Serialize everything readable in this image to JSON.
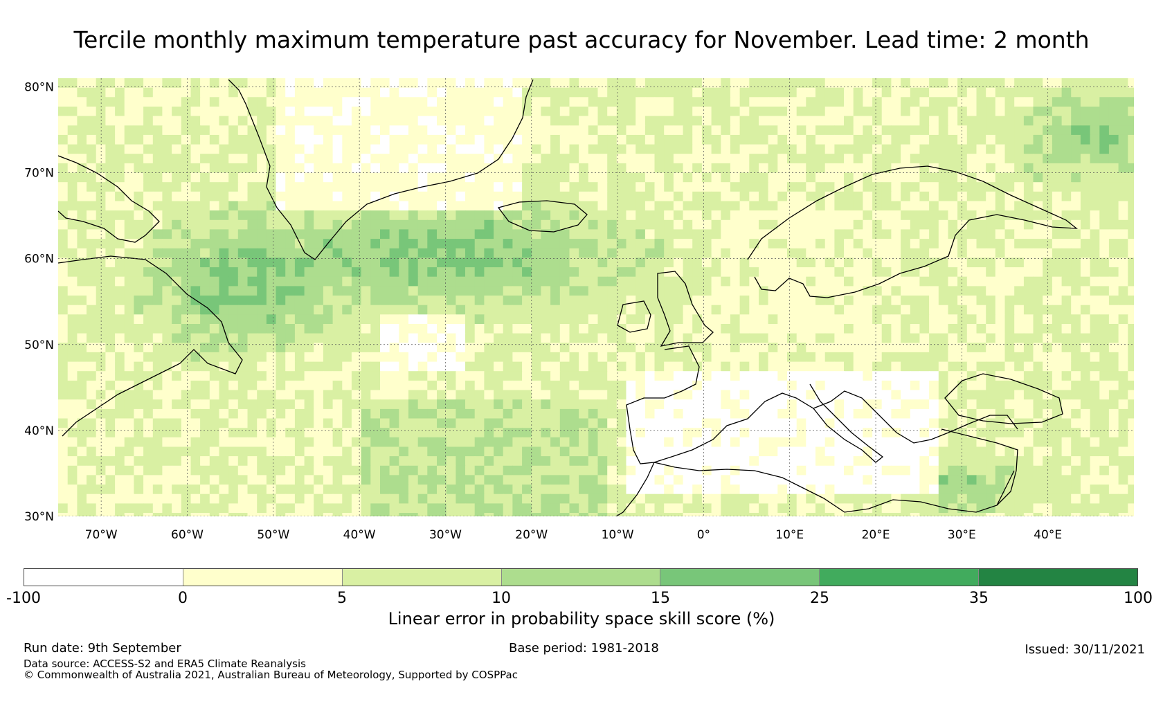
{
  "title": "Tercile monthly maximum temperature past accuracy for November. Lead time: 2 month",
  "map": {
    "lat_labels": [
      "80°N",
      "70°N",
      "60°N",
      "50°N",
      "40°N",
      "30°N"
    ],
    "lon_labels": [
      "70°W",
      "60°W",
      "50°W",
      "40°W",
      "30°W",
      "20°W",
      "10°W",
      "0°",
      "10°E",
      "20°E",
      "30°E",
      "40°E"
    ],
    "lat_range": [
      30,
      81
    ],
    "lon_range": [
      -75,
      50
    ],
    "grid": true
  },
  "legend": {
    "title": "Linear error in probability space skill score (%)",
    "ticks": [
      "-100",
      "0",
      "5",
      "10",
      "15",
      "25",
      "35",
      "100"
    ],
    "colors": [
      "#ffffff",
      "#ffffcc",
      "#d9f0a3",
      "#addd8e",
      "#78c679",
      "#41ab5d",
      "#238443"
    ]
  },
  "footer": {
    "run_date": "Run date: 9th September",
    "base_period": "Base period: 1981-2018",
    "issued": "Issued: 30/11/2021",
    "data_source": "Data source: ACCESS-S2 and ERA5 Climate Reanalysis",
    "copyright": "© Commonwealth of Australia 2021, Australian Bureau of Meteorology, Supported by COSPPac"
  }
}
